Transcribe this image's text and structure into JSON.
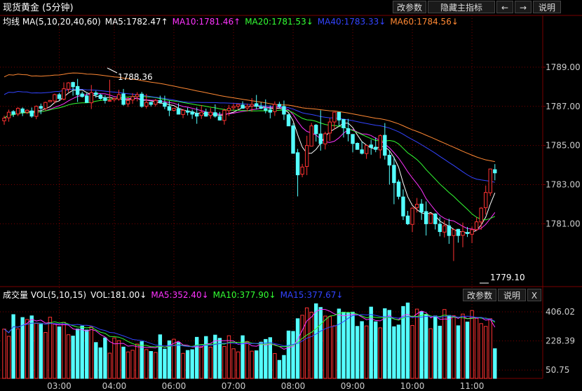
{
  "header": {
    "title": "现货黄金 (5分钟)",
    "buttons": [
      "改参数",
      "隐藏主指标",
      "←",
      "→",
      "说明"
    ]
  },
  "main_panel": {
    "legend": [
      {
        "text": "均线 MA(5,10,20,40,60)",
        "color": "#ffffff"
      },
      {
        "text": "MA5:1782.47↑",
        "color": "#ffffff"
      },
      {
        "text": "MA10:1781.46↑",
        "color": "#ff33ff"
      },
      {
        "text": "MA20:1781.53↓",
        "color": "#33ff33"
      },
      {
        "text": "MA40:1783.33↓",
        "color": "#3344ff"
      },
      {
        "text": "MA60:1784.56↓",
        "color": "#ff8833"
      }
    ],
    "annotations": {
      "high": "1788.36",
      "low": "1779.10"
    }
  },
  "volume_panel": {
    "legend": [
      {
        "text": "成交量 VOL(5,10,15)",
        "color": "#ffffff"
      },
      {
        "text": "VOL:181.00↓",
        "color": "#ffffff"
      },
      {
        "text": "MA5:352.40↓",
        "color": "#ff33ff"
      },
      {
        "text": "MA10:377.90↓",
        "color": "#33ff33"
      },
      {
        "text": "MA15:377.67↓",
        "color": "#3344ff"
      }
    ],
    "buttons": [
      "改参数",
      "说明",
      "X"
    ]
  },
  "chart_data": {
    "type": "candlestick",
    "x_tick_labels": [
      "03:00",
      "04:00",
      "06:00",
      "07:00",
      "08:00",
      "09:00",
      "10:00",
      "11:00"
    ],
    "price_axis": {
      "ticks": [
        1789.0,
        1787.0,
        1785.0,
        1783.0,
        1781.0
      ],
      "tick_labels": [
        "1789.00",
        "1787.00",
        "1785.00",
        "1783.00",
        "1781.00"
      ],
      "range": [
        1777.9,
        1791.0
      ]
    },
    "volume_axis": {
      "ticks": [
        406.02,
        228.39,
        50.75
      ],
      "tick_labels": [
        "406.02",
        "228.39",
        "50.75"
      ],
      "range": [
        0,
        470
      ]
    },
    "colors": {
      "up": "#ff3232",
      "down": "#54ffff",
      "flat": "#ffffff",
      "grid": "#7a0000",
      "axis_text": "#cccccc"
    },
    "price_path": [
      1786.4,
      1786.7,
      1786.6,
      1786.9,
      1786.7,
      1786.8,
      1786.5,
      1787.0,
      1786.9,
      1787.2,
      1787.3,
      1787.6,
      1787.4,
      1787.9,
      1788.2,
      1788.0,
      1787.6,
      1787.5,
      1787.2,
      1787.7,
      1787.6,
      1787.4,
      1787.3,
      1787.3,
      1787.4,
      1787.6,
      1787.1,
      1787.3,
      1787.5,
      1787.6,
      1787.0,
      1787.2,
      1787.1,
      1787.3,
      1787.2,
      1787.0,
      1786.8,
      1786.9,
      1786.6,
      1786.8,
      1786.7,
      1786.6,
      1786.5,
      1786.7,
      1786.5,
      1786.7,
      1786.5,
      1786.3,
      1786.8,
      1786.9,
      1787.0,
      1787.1,
      1786.9,
      1787.0,
      1787.1,
      1787.0,
      1786.9,
      1786.8,
      1786.7,
      1787.1,
      1787.0,
      1786.6,
      1786.0,
      1784.6,
      1783.5,
      1783.9,
      1785.0,
      1786.0,
      1785.6,
      1785.1,
      1785.6,
      1786.2,
      1786.7,
      1786.3,
      1785.9,
      1785.6,
      1785.1,
      1784.8,
      1784.6,
      1785.0,
      1784.9,
      1784.8,
      1785.5,
      1784.5,
      1784.0,
      1783.1,
      1782.4,
      1781.4,
      1781.0,
      1781.8,
      1782.0,
      1781.6,
      1781.0,
      1781.5,
      1781.0,
      1780.6,
      1780.9,
      1780.4,
      1780.7,
      1780.4,
      1780.6,
      1780.5,
      1780.7,
      1781.1,
      1781.8,
      1782.6,
      1783.8,
      1783.6
    ]
  }
}
